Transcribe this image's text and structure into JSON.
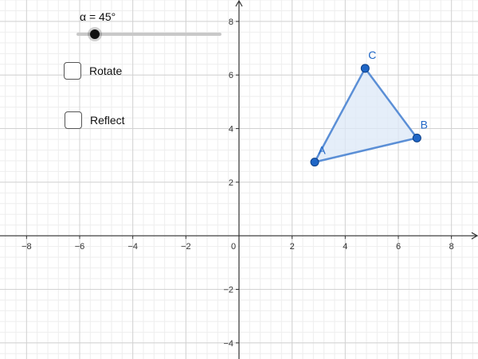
{
  "slider": {
    "label": "α = 45°",
    "value": 45,
    "min": 0,
    "max": 360
  },
  "checkboxes": {
    "rotate": {
      "label": "Rotate",
      "checked": false
    },
    "reflect": {
      "label": "Reflect",
      "checked": false
    }
  },
  "graph": {
    "x_range": [
      -9,
      9
    ],
    "y_range": [
      -4.6,
      8.8
    ],
    "x_ticks": [
      -8,
      -6,
      -4,
      -2,
      0,
      2,
      4,
      6,
      8
    ],
    "y_ticks": [
      -4,
      -2,
      2,
      4,
      6,
      8
    ],
    "x_tick_labels": [
      "−8",
      "−6",
      "−4",
      "−2",
      "0",
      "2",
      "4",
      "6",
      "8"
    ],
    "y_tick_labels": [
      "−4",
      "−2",
      "2",
      "4",
      "6",
      "8"
    ],
    "minor_grid_step": 0.4,
    "major_grid_step": 2
  },
  "polygon": {
    "fill": "#dce8f7",
    "stroke": "#5b8fd6",
    "point_color": "#1f66c6",
    "label_color": "#1f66c6",
    "points": [
      {
        "label": "A",
        "x": 2.85,
        "y": 2.75
      },
      {
        "label": "B",
        "x": 6.7,
        "y": 3.65
      },
      {
        "label": "C",
        "x": 4.75,
        "y": 6.25
      }
    ]
  },
  "colors": {
    "minor_grid": "#eeeeee",
    "major_grid": "#d2d2d2",
    "axis": "#333333"
  }
}
